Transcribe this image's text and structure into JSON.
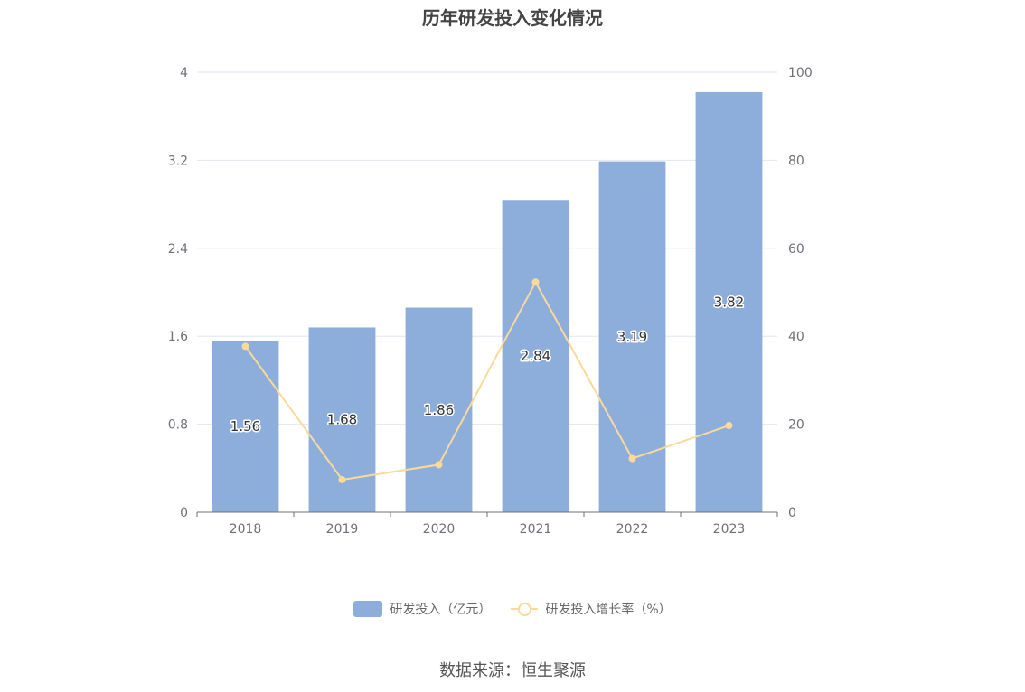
{
  "chart_data": {
    "type": "bar",
    "title": "历年研发投入变化情况",
    "categories": [
      "2018",
      "2019",
      "2020",
      "2021",
      "2022",
      "2023"
    ],
    "series": [
      {
        "name": "研发投入（亿元）",
        "type": "bar",
        "axis": "left",
        "values": [
          1.56,
          1.68,
          1.86,
          2.84,
          3.19,
          3.82
        ]
      },
      {
        "name": "研发投入增长率（%）",
        "type": "line",
        "axis": "right",
        "values": [
          37.7,
          7.4,
          10.8,
          52.3,
          12.2,
          19.7
        ]
      }
    ],
    "y_left": {
      "ticks": [
        "0",
        "0.8",
        "1.6",
        "2.4",
        "3.2",
        "4"
      ],
      "min": 0,
      "max": 4
    },
    "y_right": {
      "ticks": [
        "0",
        "20",
        "40",
        "60",
        "80",
        "100"
      ],
      "min": 0,
      "max": 100
    },
    "grid": true,
    "legend_position": "bottom",
    "colors": {
      "bar": "#8daedb",
      "line": "#fbd99a",
      "grid": "#e0e6f1",
      "axis": "#6e7079"
    }
  },
  "source": "数据来源：恒生聚源"
}
